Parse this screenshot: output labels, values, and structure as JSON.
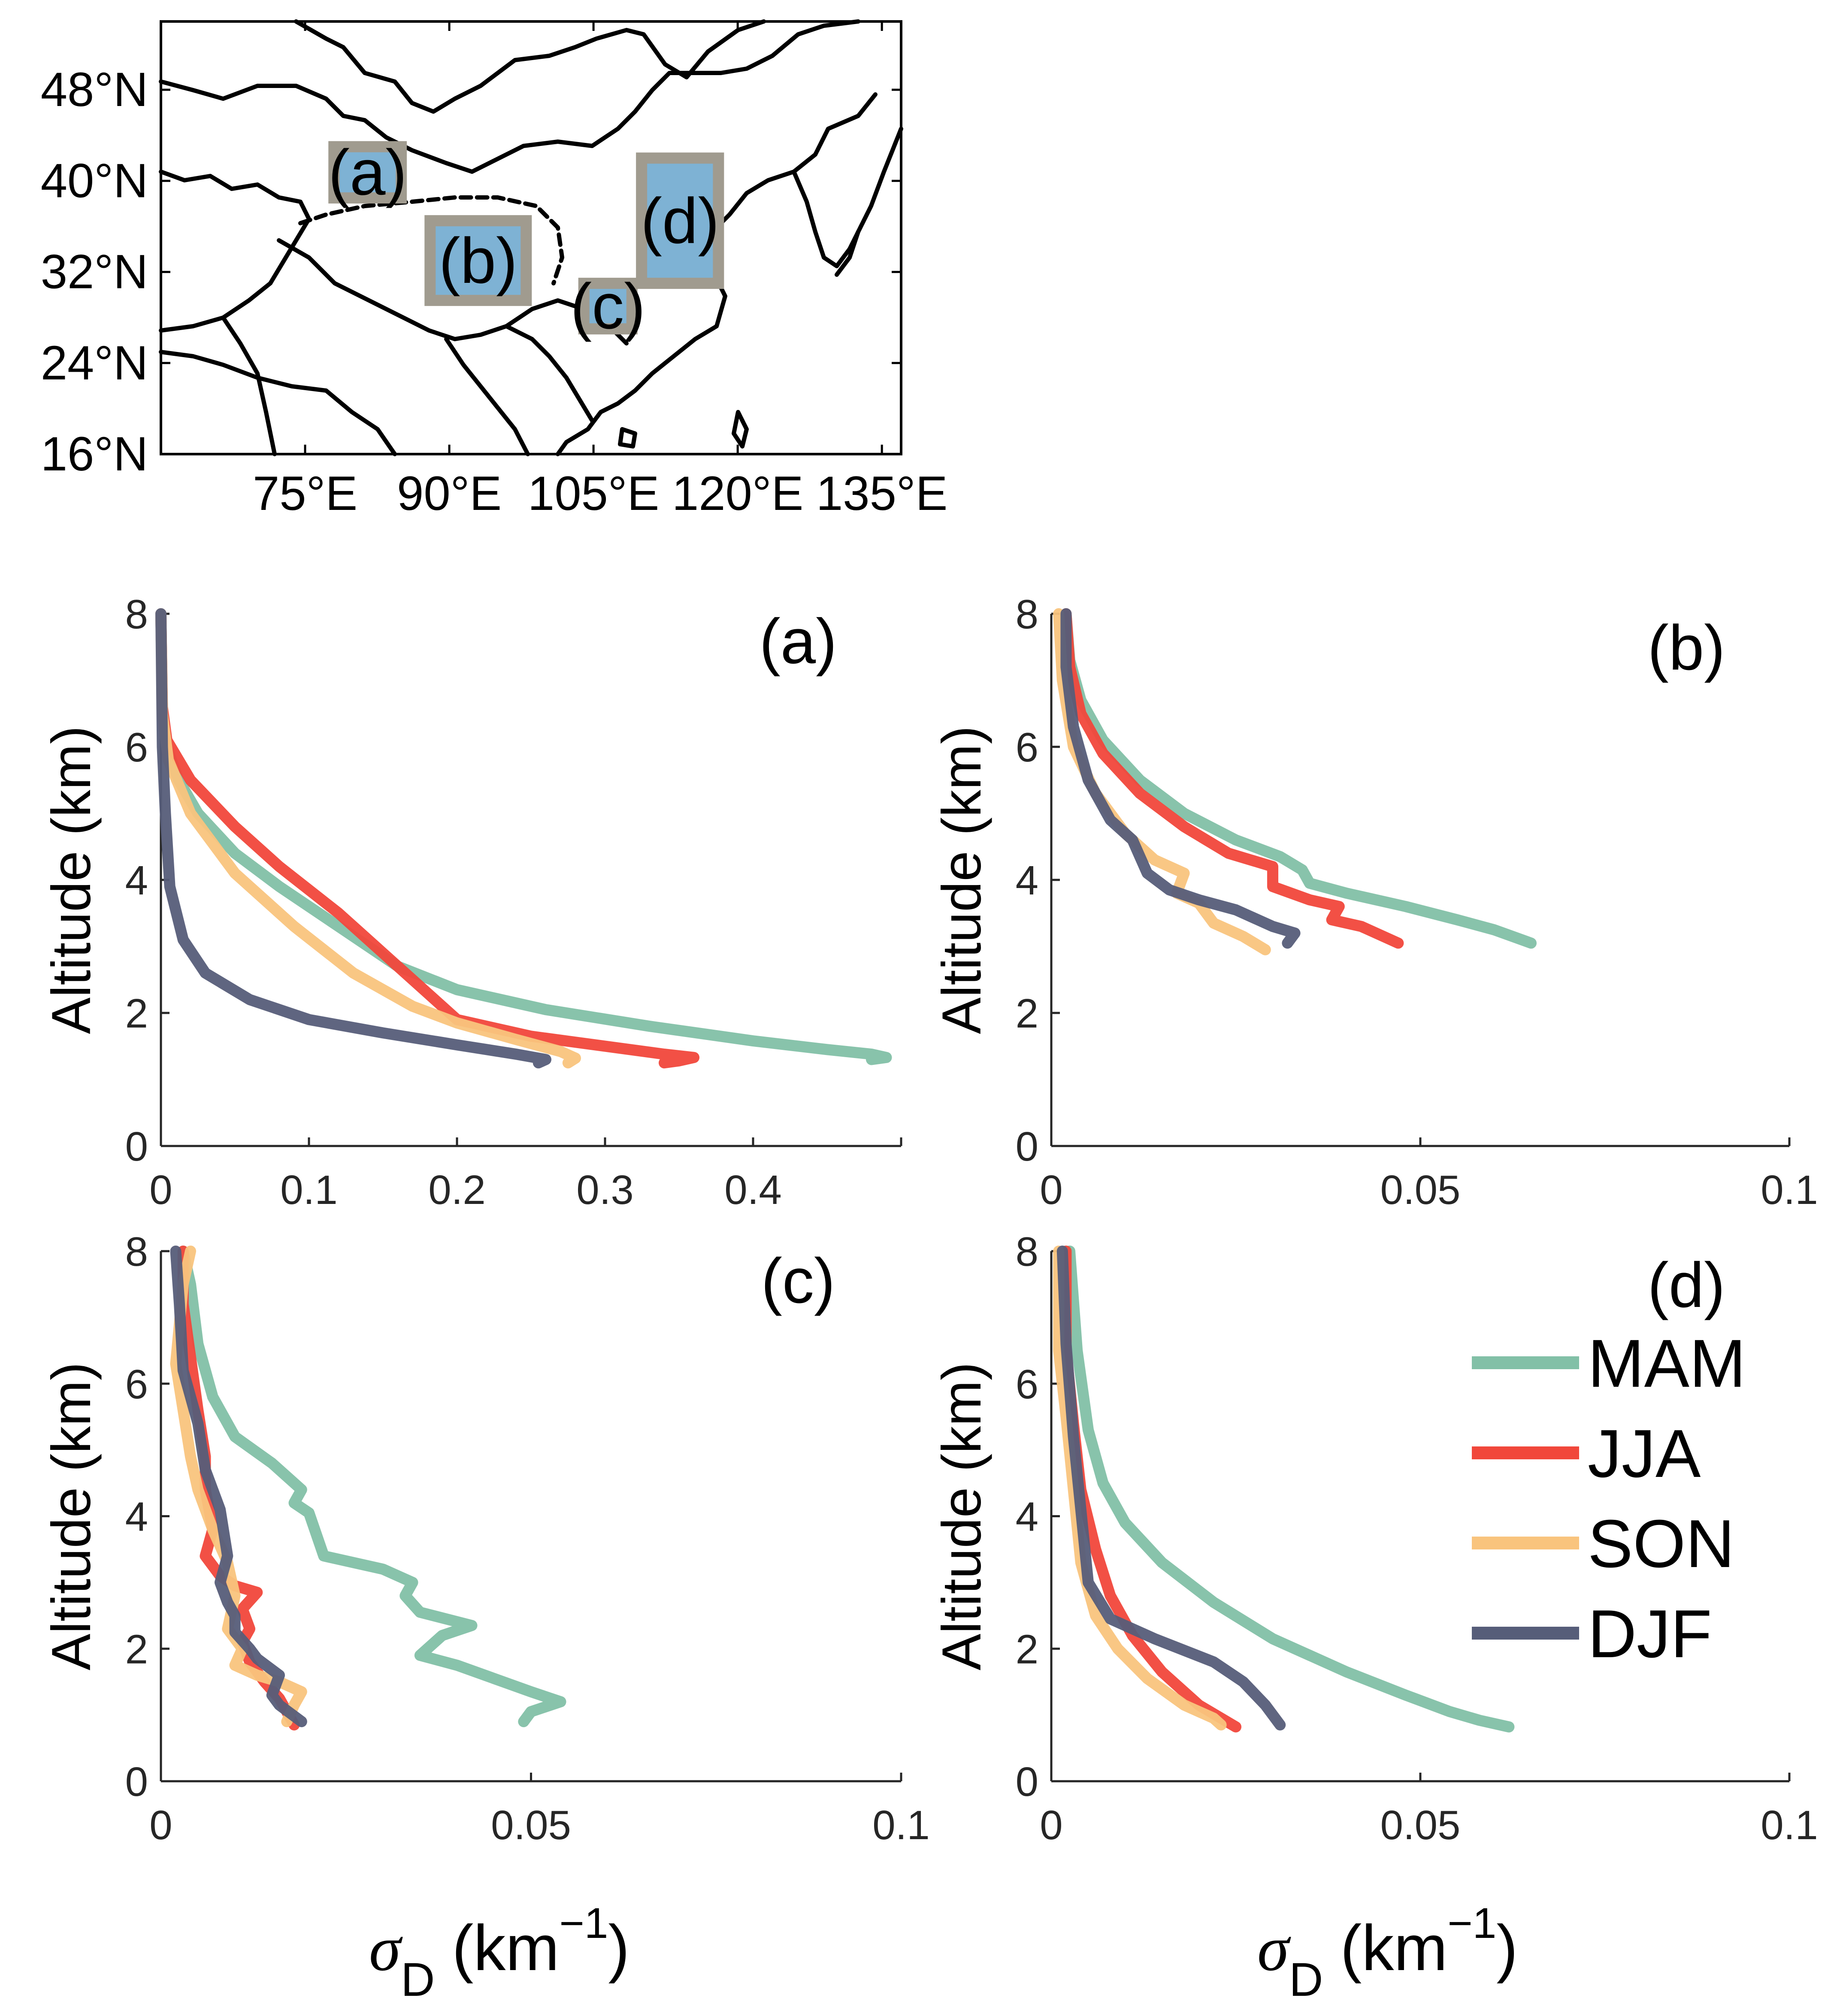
{
  "map": {
    "lat_ticks": [
      "16°N",
      "24°N",
      "32°N",
      "40°N",
      "48°N"
    ],
    "lat_values": [
      16,
      24,
      32,
      40,
      48
    ],
    "lon_ticks": [
      "75°E",
      "90°E",
      "105°E",
      "120°E",
      "135°E"
    ],
    "lon_values": [
      75,
      90,
      105,
      120,
      135
    ],
    "lon_range": [
      60,
      137
    ],
    "lat_range": [
      16,
      54
    ],
    "box_fill": "#7eb2d4",
    "box_edge": "#a09b8f",
    "regions": [
      {
        "label": "(a)",
        "lon": [
          78,
          85
        ],
        "lat": [
          38.5,
          43
        ]
      },
      {
        "label": "(b)",
        "lon": [
          88,
          98
        ],
        "lat": [
          29.5,
          36.5
        ]
      },
      {
        "label": "(c)",
        "lon": [
          104,
          109
        ],
        "lat": [
          27,
          31
        ]
      },
      {
        "label": "(d)",
        "lon": [
          110,
          118
        ],
        "lat": [
          31,
          42
        ]
      }
    ]
  },
  "colors": {
    "MAM": "#82c0a7",
    "JJA": "#f1473b",
    "SON": "#f9c47d",
    "DJF": "#565d79"
  },
  "legend": [
    "MAM",
    "JJA",
    "SON",
    "DJF"
  ],
  "ylabel": "Altitude (km)",
  "xlabel": {
    "symbol": "σ",
    "sub": "D",
    "unit_open": "(km",
    "sup": "−1",
    "unit_close": ")"
  },
  "chart_data": [
    {
      "panel": "(a)",
      "type": "line",
      "xlim": [
        0,
        0.5
      ],
      "ylim": [
        0,
        8
      ],
      "xticks": [
        "0",
        "0.1",
        "0.2",
        "0.3",
        "0.4"
      ],
      "xtick_values": [
        0,
        0.1,
        0.2,
        0.3,
        0.4
      ],
      "yticks": [
        "0",
        "2",
        "4",
        "6",
        "8"
      ],
      "ytick_values": [
        0,
        2,
        4,
        6,
        8
      ],
      "series": [
        {
          "name": "MAM",
          "x": [
            0,
            0.001,
            0.004,
            0.012,
            0.025,
            0.05,
            0.08,
            0.12,
            0.16,
            0.2,
            0.26,
            0.33,
            0.4,
            0.45,
            0.48,
            0.49,
            0.48
          ],
          "y": [
            8,
            6.5,
            6,
            5.5,
            5,
            4.4,
            3.9,
            3.3,
            2.7,
            2.35,
            2.05,
            1.8,
            1.58,
            1.45,
            1.38,
            1.33,
            1.3
          ]
        },
        {
          "name": "JJA",
          "x": [
            0,
            0.001,
            0.004,
            0.02,
            0.05,
            0.08,
            0.12,
            0.15,
            0.18,
            0.2,
            0.25,
            0.3,
            0.34,
            0.36,
            0.35,
            0.34
          ],
          "y": [
            8,
            6.6,
            6.1,
            5.5,
            4.8,
            4.2,
            3.5,
            2.9,
            2.3,
            1.9,
            1.65,
            1.5,
            1.38,
            1.33,
            1.28,
            1.25
          ]
        },
        {
          "name": "SON",
          "x": [
            0,
            0.001,
            0.005,
            0.02,
            0.05,
            0.09,
            0.13,
            0.17,
            0.2,
            0.24,
            0.27,
            0.28,
            0.275
          ],
          "y": [
            8,
            6.5,
            5.8,
            5,
            4.1,
            3.3,
            2.6,
            2.1,
            1.85,
            1.6,
            1.42,
            1.32,
            1.25
          ]
        },
        {
          "name": "DJF",
          "x": [
            0,
            0.001,
            0.003,
            0.006,
            0.015,
            0.03,
            0.06,
            0.1,
            0.15,
            0.2,
            0.24,
            0.26,
            0.255
          ],
          "y": [
            8,
            6,
            5,
            3.9,
            3.1,
            2.6,
            2.2,
            1.9,
            1.7,
            1.52,
            1.38,
            1.3,
            1.25
          ]
        }
      ]
    },
    {
      "panel": "(b)",
      "type": "line",
      "xlim": [
        0,
        0.1
      ],
      "ylim": [
        0,
        8
      ],
      "xticks": [
        "0",
        "0.05",
        "0.1"
      ],
      "xtick_values": [
        0,
        0.05,
        0.1
      ],
      "yticks": [
        "0",
        "2",
        "4",
        "6",
        "8"
      ],
      "ytick_values": [
        0,
        2,
        4,
        6,
        8
      ],
      "series": [
        {
          "name": "MAM",
          "x": [
            0.002,
            0.0025,
            0.004,
            0.007,
            0.012,
            0.018,
            0.025,
            0.031,
            0.034,
            0.035,
            0.04,
            0.048,
            0.055,
            0.06,
            0.065
          ],
          "y": [
            8,
            7.3,
            6.7,
            6.1,
            5.5,
            5,
            4.6,
            4.35,
            4.15,
            3.95,
            3.8,
            3.6,
            3.4,
            3.25,
            3.05
          ]
        },
        {
          "name": "JJA",
          "x": [
            0.002,
            0.0025,
            0.004,
            0.007,
            0.012,
            0.018,
            0.024,
            0.03,
            0.03,
            0.035,
            0.039,
            0.038,
            0.042,
            0.047
          ],
          "y": [
            8,
            7.2,
            6.5,
            5.9,
            5.3,
            4.8,
            4.4,
            4.2,
            3.9,
            3.7,
            3.6,
            3.4,
            3.3,
            3.05
          ]
        },
        {
          "name": "SON",
          "x": [
            0.001,
            0.0015,
            0.003,
            0.006,
            0.01,
            0.014,
            0.018,
            0.017,
            0.02,
            0.022,
            0.026,
            0.029
          ],
          "y": [
            8,
            7,
            6,
            5.3,
            4.7,
            4.3,
            4.1,
            3.8,
            3.65,
            3.35,
            3.15,
            2.95
          ]
        },
        {
          "name": "DJF",
          "x": [
            0.002,
            0.002,
            0.003,
            0.005,
            0.008,
            0.011,
            0.012,
            0.013,
            0.016,
            0.02,
            0.025,
            0.03,
            0.033,
            0.032
          ],
          "y": [
            8,
            7.2,
            6.3,
            5.5,
            4.9,
            4.6,
            4.35,
            4.1,
            3.85,
            3.7,
            3.55,
            3.3,
            3.2,
            3.05
          ]
        }
      ]
    },
    {
      "panel": "(c)",
      "type": "line",
      "xlim": [
        0,
        0.1
      ],
      "ylim": [
        0,
        8
      ],
      "xticks": [
        "0",
        "0.05",
        "0.1"
      ],
      "xtick_values": [
        0,
        0.05,
        0.1
      ],
      "yticks": [
        "0",
        "2",
        "4",
        "6",
        "8"
      ],
      "ytick_values": [
        0,
        2,
        4,
        6,
        8
      ],
      "series": [
        {
          "name": "MAM",
          "x": [
            0.003,
            0.004,
            0.005,
            0.007,
            0.01,
            0.015,
            0.019,
            0.018,
            0.02,
            0.022,
            0.03,
            0.034,
            0.033,
            0.035,
            0.042,
            0.038,
            0.035,
            0.04,
            0.045,
            0.05,
            0.054,
            0.05,
            0.049
          ],
          "y": [
            8,
            7.5,
            6.6,
            5.8,
            5.2,
            4.8,
            4.4,
            4.2,
            4.05,
            3.4,
            3.2,
            3.0,
            2.8,
            2.55,
            2.35,
            2.2,
            1.9,
            1.75,
            1.55,
            1.35,
            1.2,
            1.05,
            0.9
          ]
        },
        {
          "name": "JJA",
          "x": [
            0.003,
            0.003,
            0.004,
            0.005,
            0.006,
            0.006,
            0.007,
            0.006,
            0.008,
            0.01,
            0.013,
            0.011,
            0.012,
            0.011,
            0.012,
            0.014,
            0.016,
            0.017,
            0.018
          ],
          "y": [
            8,
            7.2,
            6.4,
            5.6,
            4.9,
            4.4,
            3.8,
            3.4,
            3.1,
            2.95,
            2.85,
            2.6,
            2.3,
            2.1,
            1.8,
            1.5,
            1.25,
            1.05,
            0.85
          ]
        },
        {
          "name": "SON",
          "x": [
            0.004,
            0.003,
            0.002,
            0.003,
            0.004,
            0.005,
            0.007,
            0.009,
            0.01,
            0.009,
            0.011,
            0.01,
            0.013,
            0.016,
            0.019,
            0.018,
            0.017
          ],
          "y": [
            8,
            7.5,
            6.3,
            5.6,
            4.9,
            4.4,
            3.8,
            3.3,
            2.8,
            2.3,
            2.0,
            1.75,
            1.6,
            1.5,
            1.35,
            1.15,
            0.9
          ]
        },
        {
          "name": "DJF",
          "x": [
            0.002,
            0.0025,
            0.003,
            0.005,
            0.006,
            0.008,
            0.009,
            0.008,
            0.009,
            0.01,
            0.01,
            0.012,
            0.013,
            0.016,
            0.015,
            0.016,
            0.019
          ],
          "y": [
            8,
            7.2,
            6.2,
            5.4,
            4.7,
            4.1,
            3.4,
            3.0,
            2.7,
            2.5,
            2.25,
            2.0,
            1.85,
            1.6,
            1.3,
            1.15,
            0.9
          ]
        }
      ]
    },
    {
      "panel": "(d)",
      "type": "line",
      "xlim": [
        0,
        0.1
      ],
      "ylim": [
        0,
        8
      ],
      "xticks": [
        "0",
        "0.05",
        "0.1"
      ],
      "xtick_values": [
        0,
        0.05,
        0.1
      ],
      "yticks": [
        "0",
        "2",
        "4",
        "6",
        "8"
      ],
      "ytick_values": [
        0,
        2,
        4,
        6,
        8
      ],
      "series": [
        {
          "name": "MAM",
          "x": [
            0.0025,
            0.0035,
            0.005,
            0.007,
            0.01,
            0.015,
            0.022,
            0.03,
            0.04,
            0.048,
            0.054,
            0.058,
            0.062
          ],
          "y": [
            8,
            6.5,
            5.3,
            4.5,
            3.9,
            3.3,
            2.7,
            2.15,
            1.65,
            1.3,
            1.05,
            0.92,
            0.82
          ]
        },
        {
          "name": "JJA",
          "x": [
            0.002,
            0.002,
            0.003,
            0.004,
            0.006,
            0.008,
            0.011,
            0.015,
            0.02,
            0.025
          ],
          "y": [
            8,
            6.5,
            5.4,
            4.4,
            3.5,
            2.8,
            2.2,
            1.65,
            1.15,
            0.82
          ]
        },
        {
          "name": "SON",
          "x": [
            0.001,
            0.001,
            0.002,
            0.003,
            0.004,
            0.006,
            0.009,
            0.013,
            0.018,
            0.022,
            0.023
          ],
          "y": [
            8,
            6.5,
            5.5,
            4.4,
            3.3,
            2.5,
            2,
            1.55,
            1.15,
            0.95,
            0.85
          ]
        },
        {
          "name": "DJF",
          "x": [
            0.0015,
            0.002,
            0.003,
            0.004,
            0.005,
            0.008,
            0.014,
            0.022,
            0.026,
            0.029,
            0.031
          ],
          "y": [
            8,
            6.6,
            5.2,
            4.1,
            3,
            2.45,
            2.15,
            1.8,
            1.5,
            1.15,
            0.85
          ]
        }
      ]
    }
  ]
}
